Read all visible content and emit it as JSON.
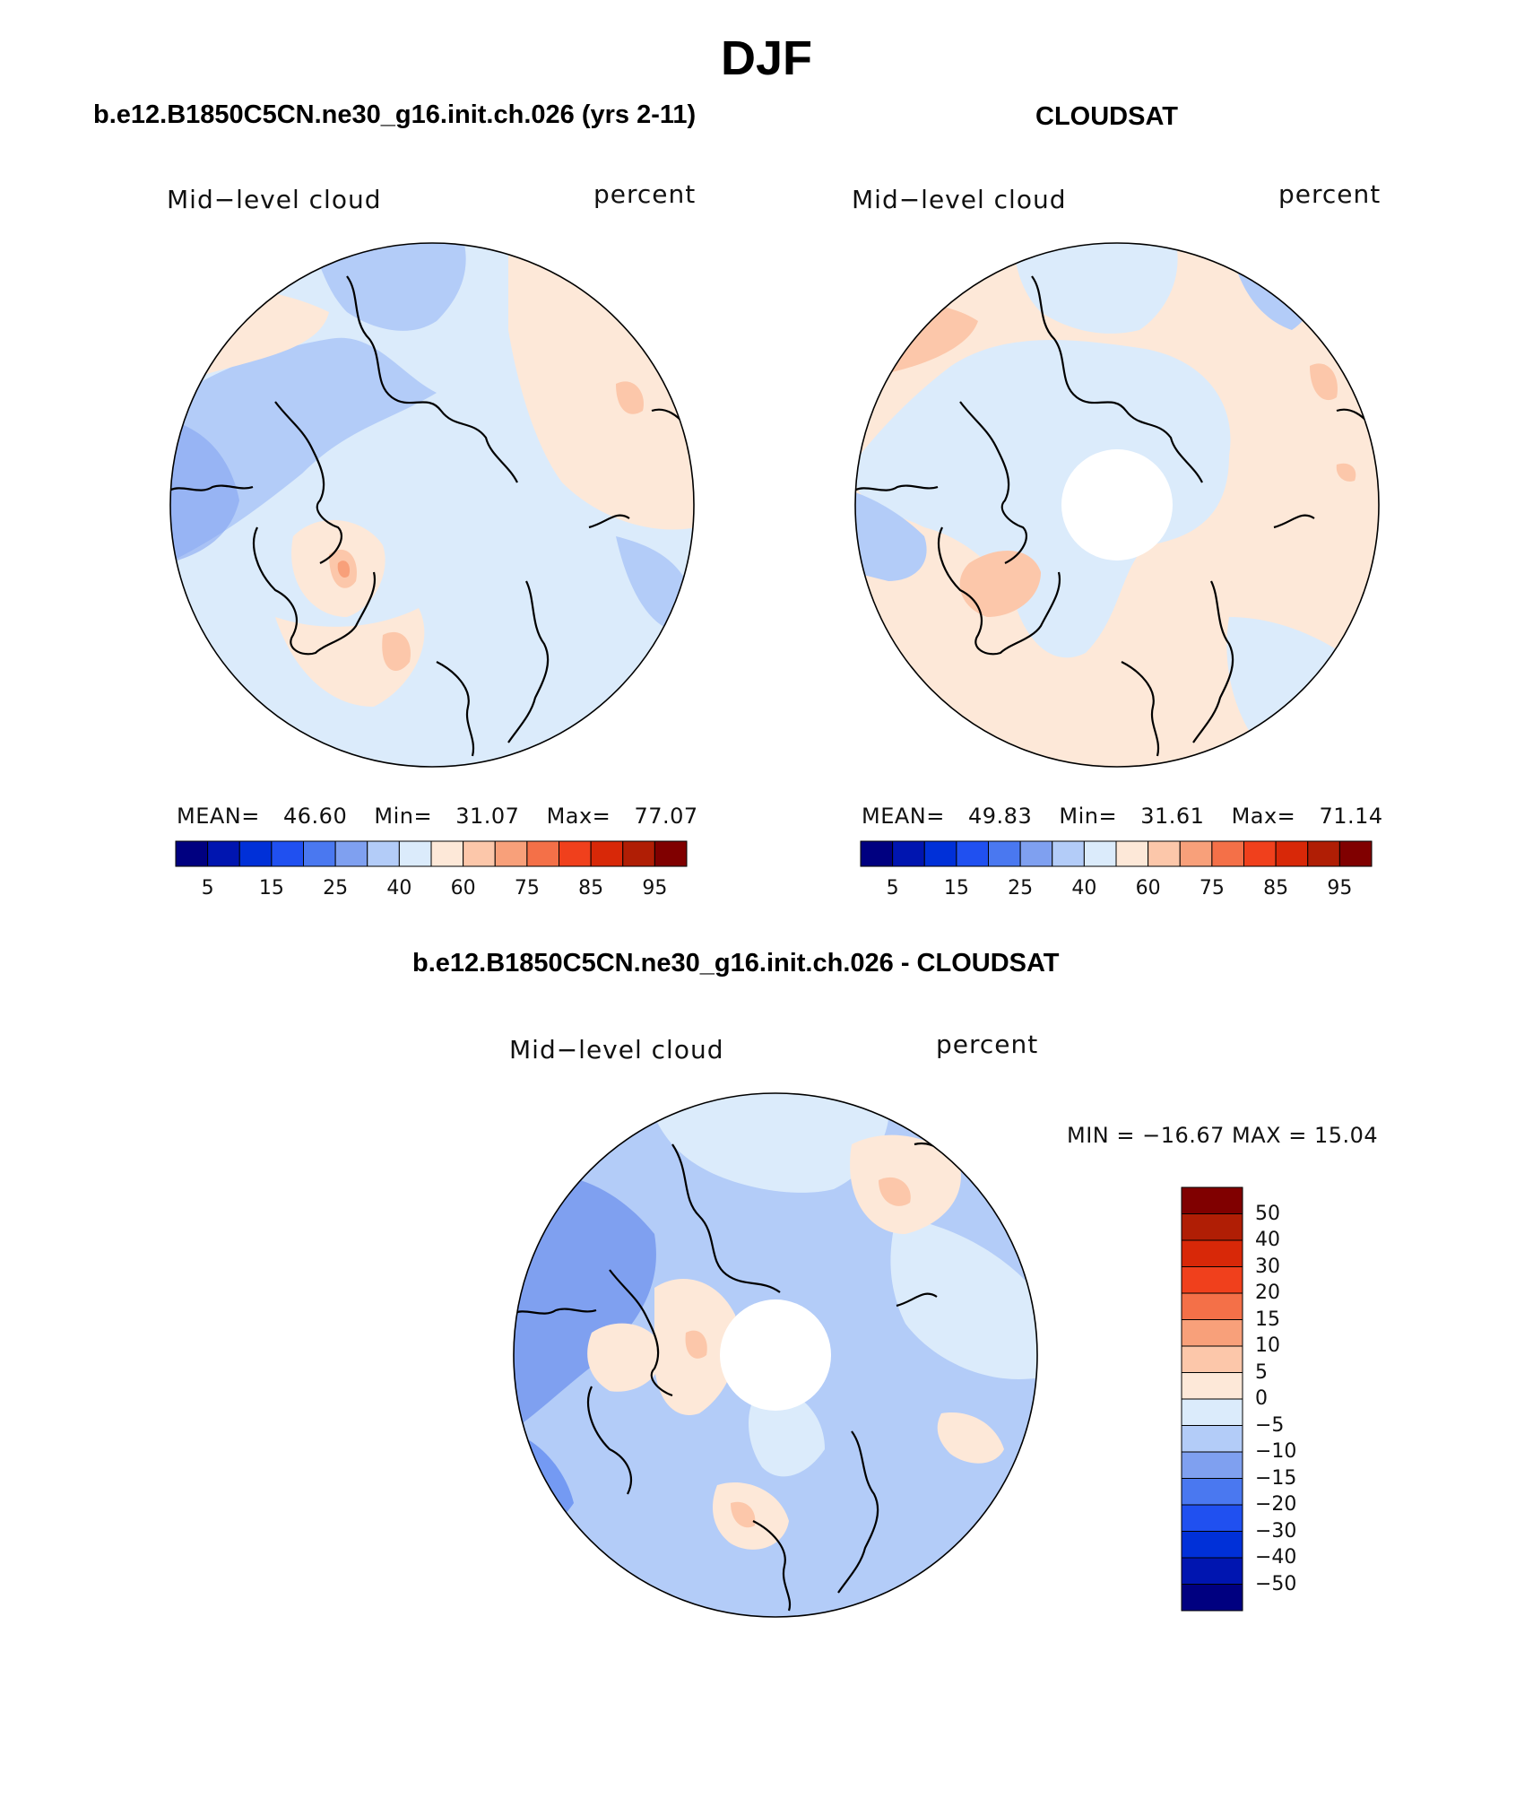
{
  "season": "DJF",
  "panels": [
    {
      "id": "model",
      "title": "b.e12.B1850C5CN.ne30_g16.init.ch.026 (yrs 2-11)",
      "variable": "Mid−level cloud",
      "units": "percent",
      "stats": {
        "mean_label": "MEAN=",
        "mean": "46.60",
        "min_label": "Min=",
        "min": "31.07",
        "max_label": "Max=",
        "max": "77.07"
      }
    },
    {
      "id": "obs",
      "title": "CLOUDSAT",
      "variable": "Mid−level cloud",
      "units": "percent",
      "stats": {
        "mean_label": "MEAN=",
        "mean": "49.83",
        "min_label": "Min=",
        "min": "31.61",
        "max_label": "Max=",
        "max": "71.14"
      }
    }
  ],
  "diff_panel": {
    "title": "b.e12.B1850C5CN.ne30_g16.init.ch.026 - CLOUDSAT",
    "variable": "Mid−level cloud",
    "units": "percent",
    "minmax_text": "MIN = −16.67 MAX =   15.04"
  },
  "abs_colorbar": {
    "colors": [
      "#000080",
      "#0015b0",
      "#0030d8",
      "#2050f0",
      "#4a78f0",
      "#7fa0f0",
      "#b3ccf8",
      "#dbebfb",
      "#fde8d8",
      "#fcc7aa",
      "#f8a07a",
      "#f47048",
      "#f0401c",
      "#d82808",
      "#b01e05",
      "#800000"
    ],
    "tick_labels": [
      "5",
      "15",
      "25",
      "40",
      "60",
      "75",
      "85",
      "95"
    ]
  },
  "diff_colorbar": {
    "colors_top_to_bottom": [
      "#800000",
      "#b01e05",
      "#d82808",
      "#f0401c",
      "#f47048",
      "#f8a07a",
      "#fcc7aa",
      "#fde8d8",
      "#dbebfb",
      "#b3ccf8",
      "#7fa0f0",
      "#4a78f0",
      "#2050f0",
      "#0030d8",
      "#0015b0",
      "#000080"
    ],
    "tick_labels_top_to_bottom": [
      "50",
      "40",
      "30",
      "20",
      "15",
      "10",
      "5",
      "0",
      "−5",
      "−10",
      "−15",
      "−20",
      "−30",
      "−40",
      "−50"
    ]
  },
  "map_colors": {
    "ocean_base": "#dbebfb",
    "light_blue": "#b3ccf8",
    "mid_blue": "#7fa0f0",
    "blue": "#4a78f0",
    "light_red": "#fde8d8",
    "salmon": "#fcc7aa",
    "orange": "#f8a07a",
    "coast": "#000000",
    "missing": "#ffffff"
  }
}
